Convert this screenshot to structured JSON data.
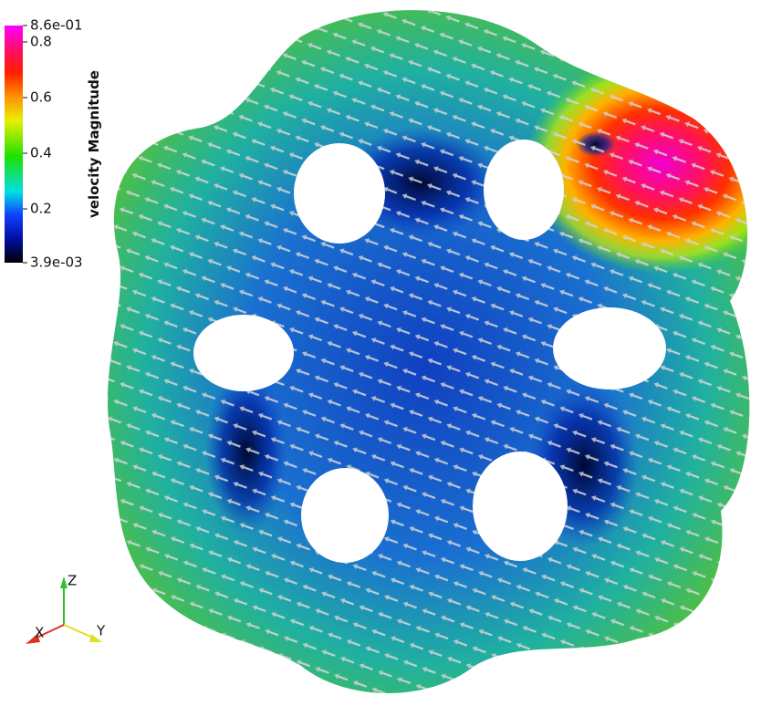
{
  "colorbar": {
    "title": "velocity Magnitude",
    "labels": [
      "8.6e-01",
      "0.8",
      "0.6",
      "0.4",
      "0.2",
      "3.9e-03"
    ]
  },
  "axes": {
    "x": "X",
    "y": "Y",
    "z": "Z"
  }
}
